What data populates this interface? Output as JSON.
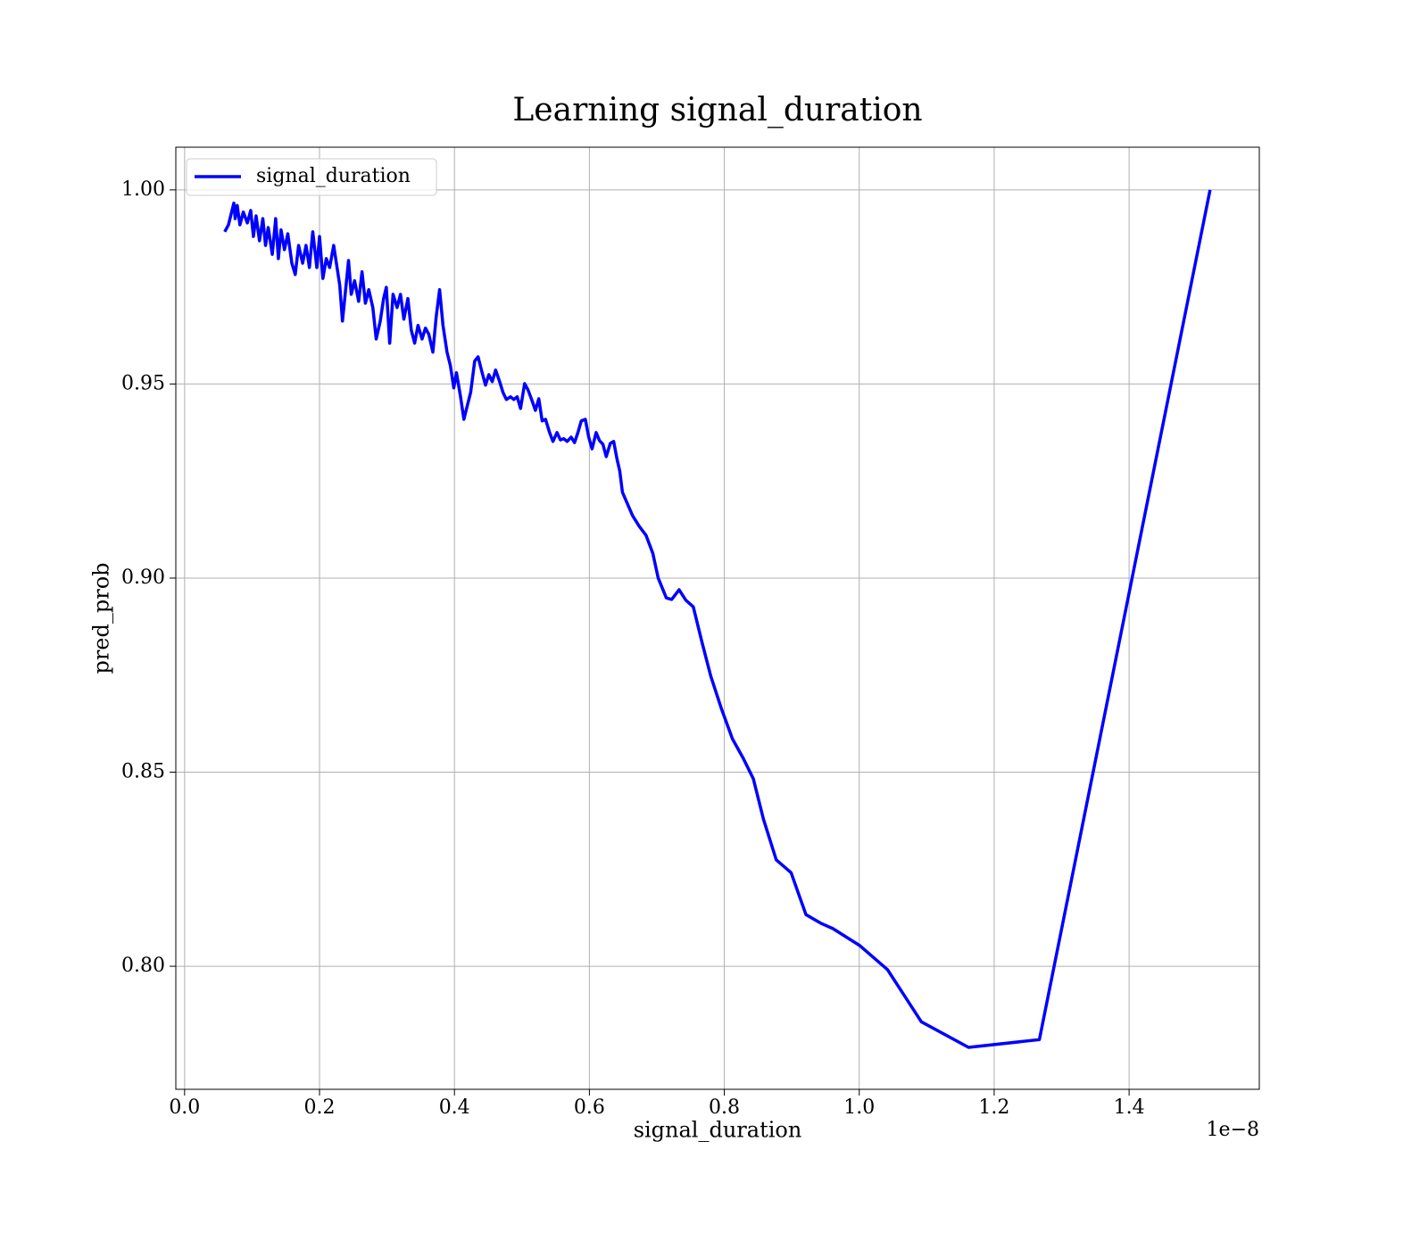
{
  "chart_data": {
    "type": "line",
    "title": "Learning signal_duration",
    "x_label": "signal_duration",
    "y_label": "pred_prob",
    "x_offset_label": "1e−8",
    "x": [
      0.0595,
      0.065,
      0.069,
      0.073,
      0.075,
      0.078,
      0.082,
      0.087,
      0.093,
      0.098,
      0.102,
      0.106,
      0.111,
      0.116,
      0.12,
      0.124,
      0.13,
      0.135,
      0.139,
      0.143,
      0.148,
      0.153,
      0.159,
      0.164,
      0.169,
      0.175,
      0.18,
      0.185,
      0.19,
      0.196,
      0.2,
      0.205,
      0.21,
      0.215,
      0.221,
      0.226,
      0.23,
      0.234,
      0.238,
      0.243,
      0.247,
      0.252,
      0.258,
      0.263,
      0.268,
      0.273,
      0.279,
      0.284,
      0.29,
      0.295,
      0.299,
      0.304,
      0.309,
      0.315,
      0.32,
      0.325,
      0.331,
      0.336,
      0.341,
      0.346,
      0.352,
      0.357,
      0.362,
      0.368,
      0.373,
      0.378,
      0.383,
      0.389,
      0.394,
      0.399,
      0.403,
      0.409,
      0.414,
      0.419,
      0.424,
      0.43,
      0.435,
      0.44,
      0.446,
      0.451,
      0.456,
      0.461,
      0.467,
      0.472,
      0.477,
      0.483,
      0.488,
      0.493,
      0.498,
      0.504,
      0.509,
      0.514,
      0.52,
      0.525,
      0.53,
      0.535,
      0.541,
      0.546,
      0.552,
      0.557,
      0.562,
      0.567,
      0.573,
      0.578,
      0.583,
      0.588,
      0.594,
      0.599,
      0.604,
      0.61,
      0.615,
      0.62,
      0.625,
      0.631,
      0.636,
      0.641,
      0.645,
      0.649,
      0.664,
      0.674,
      0.684,
      0.694,
      0.702,
      0.714,
      0.722,
      0.733,
      0.743,
      0.754,
      0.767,
      0.78,
      0.796,
      0.812,
      0.828,
      0.843,
      0.858,
      0.877,
      0.899,
      0.921,
      0.944,
      0.961,
      1.001,
      1.042,
      1.092,
      1.162,
      1.267,
      1.52
    ],
    "series": [
      {
        "name": "signal_duration",
        "color": "#0000ff",
        "values": [
          0.9892,
          0.991,
          0.9938,
          0.9966,
          0.9926,
          0.996,
          0.991,
          0.9943,
          0.9915,
          0.9947,
          0.988,
          0.9933,
          0.9869,
          0.9926,
          0.9857,
          0.9903,
          0.9834,
          0.9926,
          0.9823,
          0.9897,
          0.9846,
          0.9887,
          0.9811,
          0.9782,
          0.9857,
          0.9811,
          0.9857,
          0.98,
          0.9892,
          0.98,
          0.988,
          0.9772,
          0.9823,
          0.98,
          0.9857,
          0.98,
          0.9754,
          0.9662,
          0.9731,
          0.9818,
          0.9731,
          0.9766,
          0.9713,
          0.9789,
          0.9708,
          0.9743,
          0.9697,
          0.9616,
          0.9662,
          0.972,
          0.9749,
          0.9605,
          0.9731,
          0.9697,
          0.9731,
          0.9667,
          0.972,
          0.9639,
          0.9605,
          0.9651,
          0.9616,
          0.9644,
          0.9628,
          0.9582,
          0.9674,
          0.9743,
          0.9651,
          0.9582,
          0.9547,
          0.949,
          0.9529,
          0.9467,
          0.9409,
          0.9444,
          0.9478,
          0.9559,
          0.957,
          0.9536,
          0.9497,
          0.9524,
          0.9506,
          0.9536,
          0.9506,
          0.9478,
          0.946,
          0.9467,
          0.946,
          0.9467,
          0.9437,
          0.9501,
          0.9485,
          0.9462,
          0.9432,
          0.9462,
          0.9405,
          0.9409,
          0.9375,
          0.9352,
          0.9375,
          0.9356,
          0.9359,
          0.9352,
          0.9363,
          0.9349,
          0.9375,
          0.9405,
          0.9409,
          0.9363,
          0.9333,
          0.9375,
          0.9354,
          0.9345,
          0.9313,
          0.9347,
          0.9352,
          0.9306,
          0.9276,
          0.9221,
          0.9161,
          0.9133,
          0.911,
          0.9064,
          0.9,
          0.8949,
          0.8945,
          0.897,
          0.8943,
          0.8926,
          0.8834,
          0.8747,
          0.8662,
          0.8586,
          0.8536,
          0.8483,
          0.8379,
          0.8274,
          0.8241,
          0.8133,
          0.811,
          0.8097,
          0.8053,
          0.7991,
          0.7857,
          0.7791,
          0.7811,
          1.0
        ]
      }
    ],
    "xlim": [
      -0.013,
      1.593
    ],
    "ylim": [
      0.7683,
      1.011
    ],
    "xticks": [
      {
        "value": 0,
        "label": "0.0"
      },
      0.2,
      0.4,
      0.6,
      0.8,
      {
        "value": 1,
        "label": "1.0"
      },
      1.2,
      1.4
    ],
    "yticks": [
      {
        "value": 0.8,
        "label": "0.80"
      },
      0.85,
      {
        "value": 0.9,
        "label": "0.90"
      },
      0.95,
      {
        "value": 1,
        "label": "1.00"
      }
    ],
    "grid": true,
    "legend": "upper left"
  }
}
